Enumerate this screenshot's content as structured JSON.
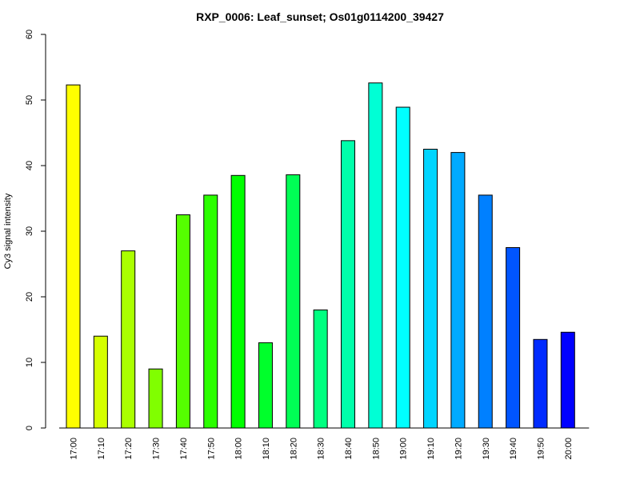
{
  "chart_data": {
    "type": "bar",
    "title": "RXP_0006: Leaf_sunset; Os01g0114200_39427",
    "xlabel": "",
    "ylabel": "Cy3 signal intensity",
    "ylim": [
      0,
      60
    ],
    "yticks": [
      0,
      10,
      20,
      30,
      40,
      50,
      60
    ],
    "grid": false,
    "legend": "none",
    "categories": [
      "17:00",
      "17:10",
      "17:20",
      "17:30",
      "17:40",
      "17:50",
      "18:00",
      "18:10",
      "18:20",
      "18:30",
      "18:40",
      "18:50",
      "19:00",
      "19:10",
      "19:20",
      "19:30",
      "19:40",
      "19:50",
      "20:00"
    ],
    "values": [
      52.3,
      14.0,
      27.0,
      9.0,
      32.5,
      35.5,
      38.5,
      13.0,
      38.6,
      18.0,
      43.8,
      52.6,
      48.9,
      42.5,
      42.0,
      35.5,
      27.5,
      13.5,
      14.6
    ],
    "colors": [
      "#FFFF00",
      "#D5FF00",
      "#AAFF00",
      "#80FF00",
      "#55FF00",
      "#2BFF00",
      "#00FF00",
      "#00FF2B",
      "#00FF55",
      "#00FF80",
      "#00FFAA",
      "#00FFD5",
      "#00FFFF",
      "#00D5FF",
      "#00AAFF",
      "#0080FF",
      "#0055FF",
      "#002BFF",
      "#0000FF"
    ]
  }
}
